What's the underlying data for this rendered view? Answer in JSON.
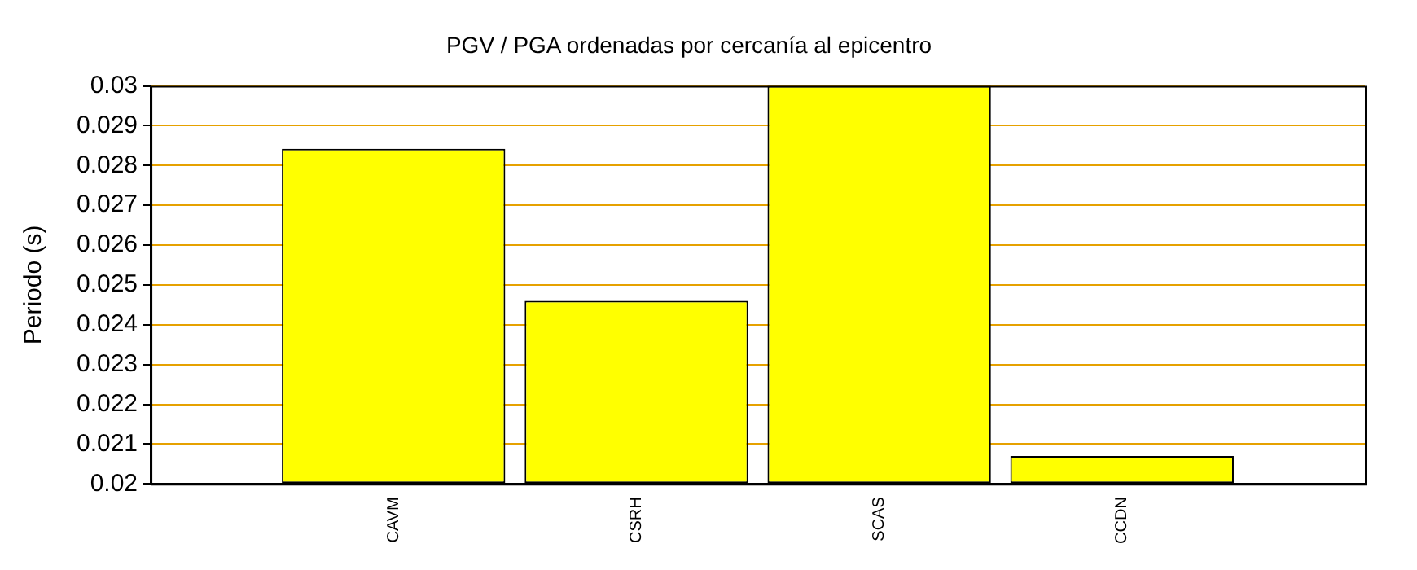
{
  "chart_data": {
    "type": "bar",
    "title": "PGV / PGA ordenadas por cercanía al epicentro",
    "ylabel": "Periodo (s)",
    "categories": [
      "CAVM",
      "CSRH",
      "SCAS",
      "CCDN"
    ],
    "values": [
      0.02842,
      0.0246,
      0.03,
      0.0207
    ],
    "color": "#ffff00",
    "ylim": [
      0.02,
      0.03
    ],
    "yticks": [
      0.02,
      0.021,
      0.022,
      0.023,
      0.024,
      0.025,
      0.026,
      0.027,
      0.028,
      0.029,
      0.03
    ],
    "grid": "y",
    "legend": false
  }
}
